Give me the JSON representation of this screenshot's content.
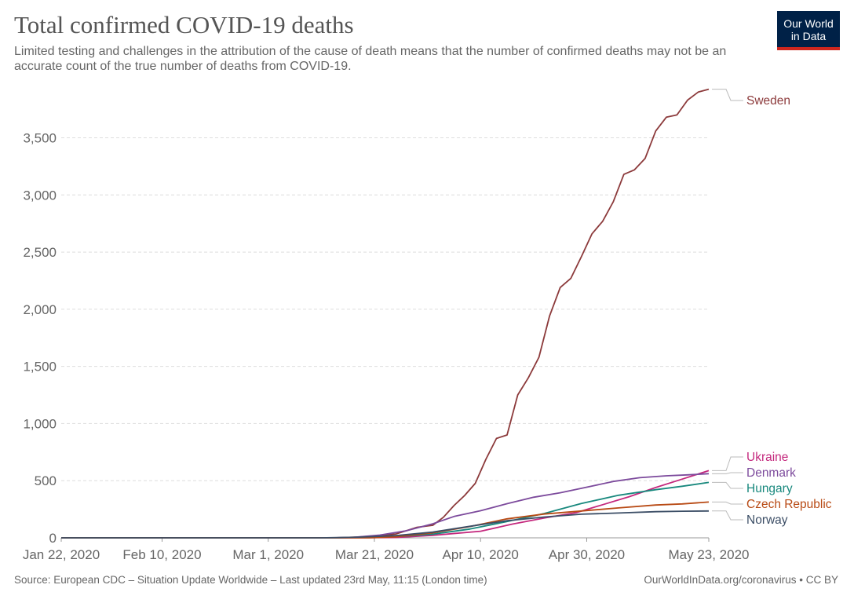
{
  "header": {
    "title": "Total confirmed COVID-19 deaths",
    "subtitle": "Limited testing and challenges in the attribution of the cause of death means that the number of confirmed deaths may not be an accurate count of the true number of deaths from COVID-19.",
    "logo_line1": "Our World",
    "logo_line2": "in Data"
  },
  "footer": {
    "source": "Source: European CDC – Situation Update Worldwide – Last updated 23rd May, 11:15 (London time)",
    "credit": "OurWorldInData.org/coronavirus • CC BY"
  },
  "chart_data": {
    "type": "line",
    "title": "Total confirmed COVID-19 deaths",
    "xlabel": "",
    "ylabel": "",
    "x_tick_labels": [
      "Jan 22, 2020",
      "Feb 10, 2020",
      "Mar 1, 2020",
      "Mar 21, 2020",
      "Apr 10, 2020",
      "Apr 30, 2020",
      "May 23, 2020"
    ],
    "x_ticks_date": [
      "2020-01-22",
      "2020-02-10",
      "2020-03-01",
      "2020-03-21",
      "2020-04-10",
      "2020-04-30",
      "2020-05-23"
    ],
    "xlim": [
      "2020-01-22",
      "2020-05-23"
    ],
    "y_ticks": [
      0,
      500,
      1000,
      1500,
      2000,
      2500,
      3000,
      3500
    ],
    "y_tick_labels": [
      "0",
      "500",
      "1,000",
      "1,500",
      "2,000",
      "2,500",
      "3,000",
      "3,500"
    ],
    "ylim": [
      0,
      3950
    ],
    "grid": "horizontal dashed",
    "legend": "labels at right end of lines",
    "series": [
      {
        "name": "Sweden",
        "color": "#8c3a3b",
        "points": [
          [
            "2020-01-22",
            0
          ],
          [
            "2020-03-10",
            0
          ],
          [
            "2020-03-14",
            1
          ],
          [
            "2020-03-18",
            7
          ],
          [
            "2020-03-22",
            21
          ],
          [
            "2020-03-25",
            33
          ],
          [
            "2020-03-27",
            62
          ],
          [
            "2020-03-29",
            92
          ],
          [
            "2020-04-01",
            110
          ],
          [
            "2020-04-03",
            180
          ],
          [
            "2020-04-05",
            282
          ],
          [
            "2020-04-07",
            370
          ],
          [
            "2020-04-09",
            477
          ],
          [
            "2020-04-11",
            687
          ],
          [
            "2020-04-13",
            870
          ],
          [
            "2020-04-15",
            900
          ],
          [
            "2020-04-17",
            1250
          ],
          [
            "2020-04-19",
            1400
          ],
          [
            "2020-04-21",
            1580
          ],
          [
            "2020-04-23",
            1940
          ],
          [
            "2020-04-25",
            2190
          ],
          [
            "2020-04-27",
            2270
          ],
          [
            "2020-04-29",
            2460
          ],
          [
            "2020-05-01",
            2660
          ],
          [
            "2020-05-03",
            2770
          ],
          [
            "2020-05-05",
            2940
          ],
          [
            "2020-05-07",
            3180
          ],
          [
            "2020-05-09",
            3220
          ],
          [
            "2020-05-11",
            3320
          ],
          [
            "2020-05-13",
            3560
          ],
          [
            "2020-05-15",
            3680
          ],
          [
            "2020-05-17",
            3700
          ],
          [
            "2020-05-19",
            3830
          ],
          [
            "2020-05-21",
            3900
          ],
          [
            "2020-05-23",
            3925
          ]
        ]
      },
      {
        "name": "Ukraine",
        "color": "#c4287d",
        "points": [
          [
            "2020-01-22",
            0
          ],
          [
            "2020-03-14",
            0
          ],
          [
            "2020-03-25",
            3
          ],
          [
            "2020-04-01",
            22
          ],
          [
            "2020-04-10",
            58
          ],
          [
            "2020-04-16",
            120
          ],
          [
            "2020-04-22",
            174
          ],
          [
            "2020-04-28",
            220
          ],
          [
            "2020-05-03",
            290
          ],
          [
            "2020-05-08",
            360
          ],
          [
            "2020-05-13",
            440
          ],
          [
            "2020-05-18",
            514
          ],
          [
            "2020-05-23",
            588
          ]
        ]
      },
      {
        "name": "Denmark",
        "color": "#7c4a9c",
        "points": [
          [
            "2020-01-22",
            0
          ],
          [
            "2020-03-13",
            0
          ],
          [
            "2020-03-17",
            4
          ],
          [
            "2020-03-22",
            24
          ],
          [
            "2020-03-27",
            62
          ],
          [
            "2020-04-01",
            123
          ],
          [
            "2020-04-05",
            187
          ],
          [
            "2020-04-10",
            237
          ],
          [
            "2020-04-15",
            299
          ],
          [
            "2020-04-20",
            355
          ],
          [
            "2020-04-25",
            394
          ],
          [
            "2020-04-30",
            443
          ],
          [
            "2020-05-05",
            493
          ],
          [
            "2020-05-10",
            526
          ],
          [
            "2020-05-15",
            543
          ],
          [
            "2020-05-19",
            551
          ],
          [
            "2020-05-23",
            561
          ]
        ]
      },
      {
        "name": "Hungary",
        "color": "#18887d",
        "points": [
          [
            "2020-01-22",
            0
          ],
          [
            "2020-03-14",
            0
          ],
          [
            "2020-03-25",
            10
          ],
          [
            "2020-04-01",
            32
          ],
          [
            "2020-04-08",
            77
          ],
          [
            "2020-04-15",
            142
          ],
          [
            "2020-04-22",
            213
          ],
          [
            "2020-04-29",
            300
          ],
          [
            "2020-05-06",
            372
          ],
          [
            "2020-05-13",
            421
          ],
          [
            "2020-05-18",
            451
          ],
          [
            "2020-05-23",
            485
          ]
        ]
      },
      {
        "name": "Czech Republic",
        "color": "#b84a14",
        "points": [
          [
            "2020-01-22",
            0
          ],
          [
            "2020-03-20",
            0
          ],
          [
            "2020-03-25",
            9
          ],
          [
            "2020-04-01",
            44
          ],
          [
            "2020-04-08",
            99
          ],
          [
            "2020-04-15",
            166
          ],
          [
            "2020-04-22",
            208
          ],
          [
            "2020-04-29",
            235
          ],
          [
            "2020-05-06",
            262
          ],
          [
            "2020-05-13",
            287
          ],
          [
            "2020-05-18",
            297
          ],
          [
            "2020-05-23",
            313
          ]
        ]
      },
      {
        "name": "Norway",
        "color": "#3c4e66",
        "points": [
          [
            "2020-01-22",
            0
          ],
          [
            "2020-03-11",
            0
          ],
          [
            "2020-03-18",
            6
          ],
          [
            "2020-03-25",
            19
          ],
          [
            "2020-04-01",
            50
          ],
          [
            "2020-04-08",
            101
          ],
          [
            "2020-04-15",
            150
          ],
          [
            "2020-04-22",
            182
          ],
          [
            "2020-04-29",
            207
          ],
          [
            "2020-05-06",
            217
          ],
          [
            "2020-05-13",
            229
          ],
          [
            "2020-05-18",
            233
          ],
          [
            "2020-05-23",
            235
          ]
        ]
      }
    ]
  }
}
